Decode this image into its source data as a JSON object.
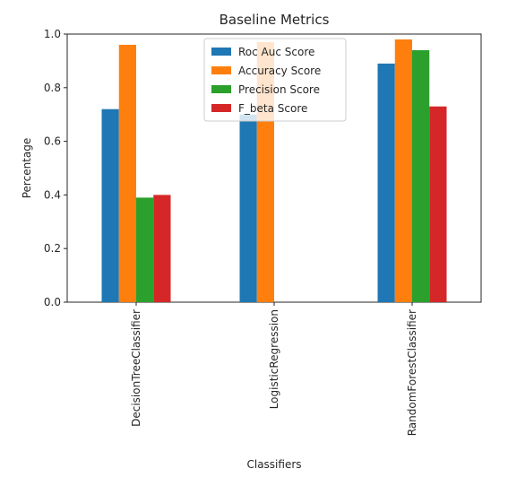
{
  "chart_data": {
    "type": "bar",
    "title": "Baseline Metrics",
    "xlabel": "Classifiers",
    "ylabel": "Percentage",
    "ylim": [
      0,
      1.0
    ],
    "yticks": [
      "0.0",
      "0.2",
      "0.4",
      "0.6",
      "0.8",
      "1.0"
    ],
    "categories": [
      "DecisionTreeClassifier",
      "LogisticRegression",
      "RandomForestClassifier"
    ],
    "series": [
      {
        "name": "Roc Auc Score",
        "color": "#1f77b4",
        "values": [
          0.72,
          0.7,
          0.89
        ]
      },
      {
        "name": "Accuracy Score",
        "color": "#ff7f0e",
        "values": [
          0.96,
          0.97,
          0.98
        ]
      },
      {
        "name": "Precision Score",
        "color": "#2ca02c",
        "values": [
          0.39,
          0.0,
          0.94
        ]
      },
      {
        "name": "F_beta Score",
        "color": "#d62728",
        "values": [
          0.4,
          0.0,
          0.73
        ]
      }
    ],
    "legend": {
      "position": "upper-center"
    },
    "grid": false
  }
}
